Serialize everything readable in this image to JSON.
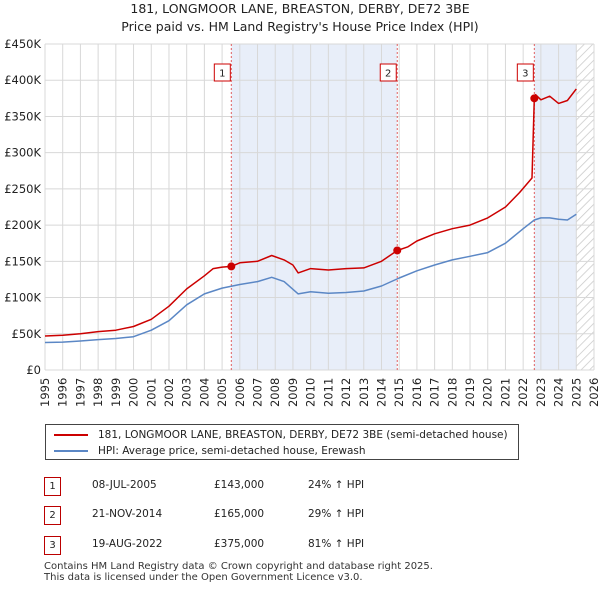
{
  "title": {
    "line1": "181, LONGMOOR LANE, BREASTON, DERBY, DE72 3BE",
    "line2": "Price paid vs. HM Land Registry's House Price Index (HPI)"
  },
  "colors": {
    "price_line": "#cc0000",
    "hpi_line": "#5b87c5",
    "shade": "#e8eef9",
    "vline": "#e06060",
    "grid": "#d8d8d8"
  },
  "legend": {
    "price": "181, LONGMOOR LANE, BREASTON, DERBY, DE72 3BE (semi-detached house)",
    "hpi": "HPI: Average price, semi-detached house, Erewash"
  },
  "transactions": [
    {
      "num": "1",
      "date": "08-JUL-2005",
      "price": "£143,000",
      "hpi": "24% ↑ HPI"
    },
    {
      "num": "2",
      "date": "21-NOV-2014",
      "price": "£165,000",
      "hpi": "29% ↑ HPI"
    },
    {
      "num": "3",
      "date": "19-AUG-2022",
      "price": "£375,000",
      "hpi": "81% ↑ HPI"
    }
  ],
  "footer": {
    "line1": "Contains HM Land Registry data © Crown copyright and database right 2025.",
    "line2": "This data is licensed under the Open Government Licence v3.0."
  },
  "chart_data": {
    "type": "line",
    "title": "181, LONGMOOR LANE, BREASTON, DERBY, DE72 3BE — Price paid vs. HM Land Registry's House Price Index (HPI)",
    "xlabel": "",
    "ylabel": "",
    "xlim": [
      1995,
      2026
    ],
    "ylim": [
      0,
      450000
    ],
    "x_ticks": [
      "1995",
      "1996",
      "1997",
      "1998",
      "1999",
      "2000",
      "2001",
      "2002",
      "2003",
      "2004",
      "2005",
      "2006",
      "2007",
      "2008",
      "2009",
      "2010",
      "2011",
      "2012",
      "2013",
      "2014",
      "2015",
      "2016",
      "2017",
      "2018",
      "2019",
      "2020",
      "2021",
      "2022",
      "2023",
      "2024",
      "2025",
      "2026"
    ],
    "y_ticks": [
      {
        "value": 0,
        "label": "£0"
      },
      {
        "value": 50000,
        "label": "£50K"
      },
      {
        "value": 100000,
        "label": "£100K"
      },
      {
        "value": 150000,
        "label": "£150K"
      },
      {
        "value": 200000,
        "label": "£200K"
      },
      {
        "value": 250000,
        "label": "£250K"
      },
      {
        "value": 300000,
        "label": "£300K"
      },
      {
        "value": 350000,
        "label": "£350K"
      },
      {
        "value": 400000,
        "label": "£400K"
      },
      {
        "value": 450000,
        "label": "£450K"
      }
    ],
    "shaded_ranges": [
      [
        2005.52,
        2014.89
      ],
      [
        2022.63,
        2025.0
      ]
    ],
    "hatched_range": [
      2025.0,
      2026.0
    ],
    "sales": [
      {
        "label": "1",
        "x": 2005.52,
        "y": 143000
      },
      {
        "label": "2",
        "x": 2014.89,
        "y": 165000
      },
      {
        "label": "3",
        "x": 2022.63,
        "y": 375000
      }
    ],
    "series": [
      {
        "name": "181, LONGMOOR LANE, BREASTON, DERBY, DE72 3BE (semi-detached house)",
        "color": "#cc0000",
        "x": [
          1995,
          1996,
          1997,
          1998,
          1999,
          2000,
          2001,
          2002,
          2003,
          2004,
          2004.5,
          2005.0,
          2005.52,
          2006,
          2007,
          2007.8,
          2008.5,
          2009.0,
          2009.3,
          2010,
          2011,
          2012,
          2013,
          2014,
          2014.89,
          2015.5,
          2016,
          2017,
          2018,
          2019,
          2020,
          2021,
          2021.8,
          2022.5,
          2022.63,
          2022.7,
          2023,
          2023.5,
          2024,
          2024.5,
          2025.0
        ],
        "y": [
          47000,
          48000,
          50000,
          53000,
          55000,
          60000,
          70000,
          88000,
          112000,
          130000,
          140000,
          142000,
          143000,
          148000,
          150000,
          158000,
          152000,
          145000,
          134000,
          140000,
          138000,
          140000,
          141000,
          150000,
          165000,
          170000,
          178000,
          188000,
          195000,
          200000,
          210000,
          225000,
          245000,
          265000,
          375000,
          380000,
          373000,
          378000,
          368000,
          372000,
          388000
        ]
      },
      {
        "name": "HPI: Average price, semi-detached house, Erewash",
        "color": "#5b87c5",
        "x": [
          1995,
          1996,
          1997,
          1998,
          1999,
          2000,
          2001,
          2002,
          2003,
          2004,
          2005,
          2006,
          2007,
          2007.8,
          2008.5,
          2009.3,
          2010,
          2011,
          2012,
          2013,
          2014,
          2015,
          2016,
          2017,
          2018,
          2019,
          2020,
          2021,
          2022,
          2022.63,
          2023,
          2023.5,
          2024,
          2024.5,
          2025.0
        ],
        "y": [
          38000,
          38500,
          40000,
          42000,
          43500,
          46000,
          55000,
          68000,
          90000,
          105000,
          113000,
          118000,
          122000,
          128000,
          122000,
          105000,
          108000,
          106000,
          107000,
          109000,
          116000,
          127000,
          137000,
          145000,
          152000,
          157000,
          162000,
          175000,
          195000,
          207000,
          210000,
          210000,
          208000,
          207000,
          215000
        ]
      }
    ]
  }
}
